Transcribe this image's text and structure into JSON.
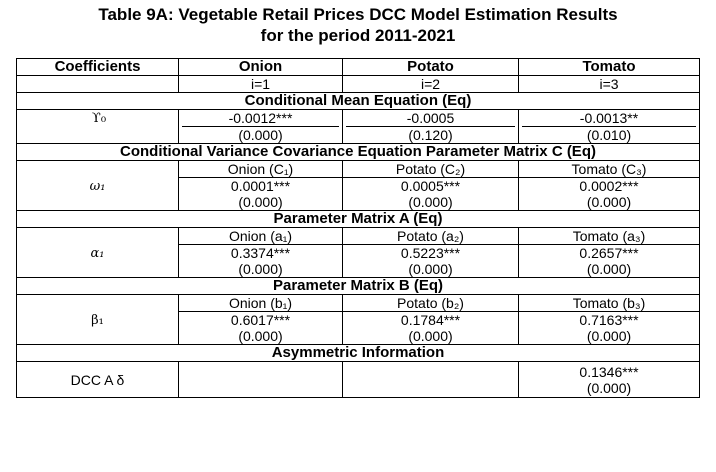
{
  "title": {
    "line1": "Table 9A: Vegetable Retail Prices DCC Model Estimation Results",
    "line2": "for the period 2011-2021"
  },
  "header": {
    "coefficients": "Coefficients",
    "columns": [
      "Onion",
      "Potato",
      "Tomato"
    ],
    "indices": [
      "i=1",
      "i=2",
      "i=3"
    ]
  },
  "sections": {
    "mean": "Conditional Mean Equation (Eq)",
    "variance": "Conditional Variance Covariance Equation Parameter Matrix C (Eq)",
    "matrix_a": "Parameter Matrix A (Eq)",
    "matrix_b": "Parameter Matrix B (Eq)",
    "asym": "Asymmetric Information"
  },
  "gamma0": {
    "label": "ϒ₀",
    "values": [
      "-0.0012***",
      "-0.0005",
      "-0.0013**"
    ],
    "pvalues": [
      "(0.000)",
      "(0.120)",
      "(0.010)"
    ]
  },
  "omega1": {
    "label": "ω₁",
    "params": [
      "Onion (C₁)",
      "Potato (C₂)",
      "Tomato (C₃)"
    ],
    "values": [
      "0.0001***",
      "0.0005***",
      "0.0002***"
    ],
    "pvalues": [
      "(0.000)",
      "(0.000)",
      "(0.000)"
    ]
  },
  "alpha1": {
    "label": "α₁",
    "params": [
      "Onion (a₁)",
      "Potato (a₂)",
      "Tomato (a₃)"
    ],
    "values": [
      "0.3374***",
      "0.5223***",
      "0.2657***"
    ],
    "pvalues": [
      "(0.000)",
      "(0.000)",
      "(0.000)"
    ]
  },
  "beta1": {
    "label": "β₁",
    "params": [
      "Onion (b₁)",
      "Potato (b₂)",
      "Tomato (b₃)"
    ],
    "values": [
      "0.6017***",
      "0.1784***",
      "0.7163***"
    ],
    "pvalues": [
      "(0.000)",
      "(0.000)",
      "(0.000)"
    ]
  },
  "dcc": {
    "label": "DCC A δ",
    "value": "0.1346***",
    "pvalue": "(0.000)"
  }
}
